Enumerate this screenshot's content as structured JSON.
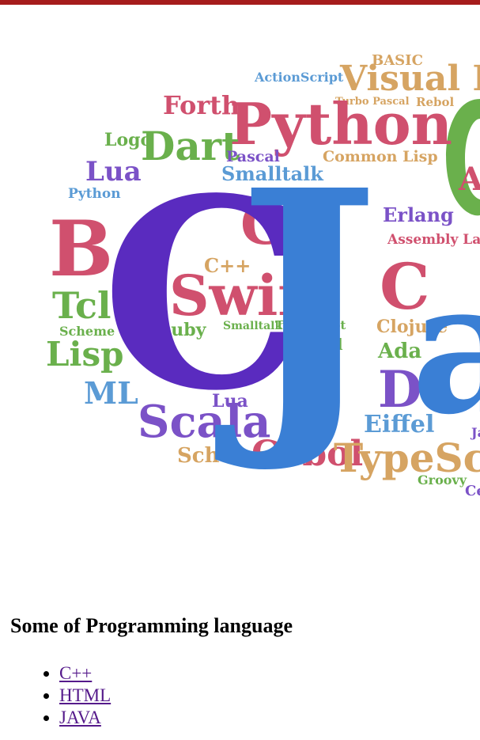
{
  "heading": "Some of Programming language",
  "languages": [
    {
      "label": "C++"
    },
    {
      "label": "HTML"
    },
    {
      "label": "JAVA"
    }
  ],
  "colors": {
    "top_bar": "#a61c1c",
    "link": "#551a8b"
  },
  "wordcloud": {
    "words": [
      {
        "text": "BASIC",
        "color": "#d6a462"
      },
      {
        "text": "ActionScript",
        "color": "#5b9bd5"
      },
      {
        "text": "Visual Bas",
        "color": "#d6a462"
      },
      {
        "text": "Forth",
        "color": "#d0506e"
      },
      {
        "text": "Turbo Pascal",
        "color": "#d6a462"
      },
      {
        "text": "Rebol",
        "color": "#d6a462"
      },
      {
        "text": "Python",
        "color": "#d0506e"
      },
      {
        "text": "Logo",
        "color": "#6ab04c"
      },
      {
        "text": "Dart",
        "color": "#6ab04c"
      },
      {
        "text": "Pascal",
        "color": "#7b52c7"
      },
      {
        "text": "Common Lisp",
        "color": "#d6a462"
      },
      {
        "text": "Lua",
        "color": "#7b52c7"
      },
      {
        "text": "Smalltalk",
        "color": "#5b9bd5"
      },
      {
        "text": "Python",
        "color": "#5b9bd5"
      },
      {
        "text": "Cobol",
        "color": "#d6a462"
      },
      {
        "text": "Go",
        "color": "#d0506e"
      },
      {
        "text": "Erlang",
        "color": "#7b52c7"
      },
      {
        "text": "B",
        "color": "#d0506e"
      },
      {
        "text": "Assembly Lang",
        "color": "#d0506e"
      },
      {
        "text": "C++",
        "color": "#d6a462"
      },
      {
        "text": "Scala",
        "color": "#d0506e"
      },
      {
        "text": "Swift",
        "color": "#d0506e"
      },
      {
        "text": "Tcl",
        "color": "#6ab04c"
      },
      {
        "text": "Scheme",
        "color": "#6ab04c"
      },
      {
        "text": "Ruby",
        "color": "#6ab04c"
      },
      {
        "text": "Smalltalk",
        "color": "#6ab04c"
      },
      {
        "text": "TypeScript",
        "color": "#6ab04c"
      },
      {
        "text": "Clojure",
        "color": "#d6a462"
      },
      {
        "text": "Lisp",
        "color": "#6ab04c"
      },
      {
        "text": "Caml",
        "color": "#6ab04c"
      },
      {
        "text": "Ada",
        "color": "#6ab04c"
      },
      {
        "text": "ML",
        "color": "#5b9bd5"
      },
      {
        "text": "D",
        "color": "#7b52c7"
      },
      {
        "text": "Lua",
        "color": "#7b52c7"
      },
      {
        "text": "Scala",
        "color": "#7b52c7"
      },
      {
        "text": "Eiffel",
        "color": "#5b9bd5"
      },
      {
        "text": "Scheme",
        "color": "#d6a462"
      },
      {
        "text": "Cobol",
        "color": "#d0506e"
      },
      {
        "text": "TypeScrip",
        "color": "#d6a462"
      },
      {
        "text": "Groovy",
        "color": "#6ab04c"
      },
      {
        "text": "C",
        "color": "#5a2bbf"
      },
      {
        "text": "C",
        "color": "#d0506e"
      },
      {
        "text": "A",
        "color": "#d0506e"
      },
      {
        "text": "J",
        "color": "#3a7fd5"
      },
      {
        "text": "a",
        "color": "#3a7fd5"
      },
      {
        "text": "Ja",
        "color": "#7b52c7"
      },
      {
        "text": "Ce",
        "color": "#7b52c7"
      }
    ]
  }
}
